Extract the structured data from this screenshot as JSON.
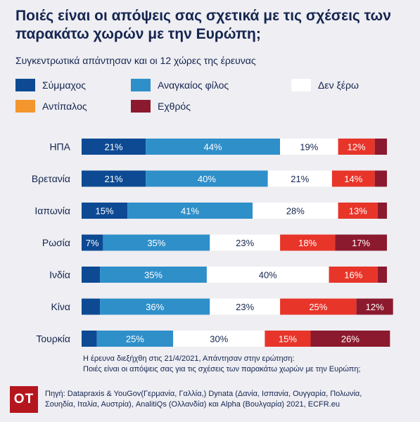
{
  "title": "Ποιές είναι οι απόψεις σας σχετικά με τις σχέσεις των παρακάτω χωρών με την Ευρώπη;",
  "subtitle": "Συγκεντρωτικά απάντησαν και οι 12 χώρες της έρευνας",
  "colors": {
    "ally": "#0d4a93",
    "partner": "#2f8fc9",
    "dontknow": "#ffffff",
    "rival": "#e8352a",
    "enemy": "#8c1a2e",
    "legend_rival": "#f3962e"
  },
  "legend": [
    {
      "label": "Σύμμαχος",
      "color": "#0d4a93"
    },
    {
      "label": "Αναγκαίος φίλος",
      "color": "#2f8fc9"
    },
    {
      "label": "Δεν ξέρω",
      "color": "#ffffff"
    },
    {
      "label": "Αντίπαλος",
      "color": "#f3962e"
    },
    {
      "label": "Εχθρός",
      "color": "#8c1a2e"
    }
  ],
  "chart_data": {
    "type": "bar",
    "orientation": "horizontal-stacked",
    "categories": [
      "ΗΠΑ",
      "Βρετανία",
      "Ιαπωνία",
      "Ρωσία",
      "Ινδία",
      "Κίνα",
      "Τουρκία"
    ],
    "series": [
      {
        "name": "Σύμμαχος",
        "values": [
          21,
          21,
          15,
          7,
          6,
          6,
          5
        ],
        "labels": [
          "21%",
          "21%",
          "15%",
          "7%",
          "",
          "",
          ""
        ]
      },
      {
        "name": "Αναγκαίος φίλος",
        "values": [
          44,
          40,
          41,
          35,
          35,
          36,
          25
        ],
        "labels": [
          "44%",
          "40%",
          "41%",
          "35%",
          "35%",
          "36%",
          "25%"
        ]
      },
      {
        "name": "Δεν ξέρω",
        "values": [
          19,
          21,
          28,
          23,
          40,
          23,
          30
        ],
        "labels": [
          "19%",
          "21%",
          "28%",
          "23%",
          "40%",
          "23%",
          "30%"
        ]
      },
      {
        "name": "Αντίπαλος",
        "values": [
          12,
          14,
          13,
          18,
          16,
          25,
          15
        ],
        "labels": [
          "12%",
          "14%",
          "13%",
          "18%",
          "16%",
          "25%",
          "15%"
        ]
      },
      {
        "name": "Εχθρός",
        "values": [
          4,
          4,
          3,
          17,
          3,
          12,
          26
        ],
        "labels": [
          "",
          "",
          "",
          "17%",
          "",
          "12%",
          "26%"
        ]
      }
    ],
    "xlim": [
      0,
      100
    ],
    "grid": false,
    "legend_position": "top"
  },
  "footnote": {
    "line1": "Η έρευνα διεξήχθη στις 21/4/2021, Απάντησαν στην ερώτηση:",
    "line2": "Ποιές είναι οι απόψεις σας για τις σχέσεις των παρακάτω χωρών με την Ευρώπη;"
  },
  "logo": "OT",
  "source": {
    "line1": "Πηγή: Datapraxis & YouGov(Γερμανία, Γαλλία,) Dynata (Δανία, Ισπανία, Ουγγαρία, Πολωνία,",
    "line2": "Σουηδία, Ιταλία, Αυστρία), AnalitiQs (Ολλανδία) και Alpha (Βουλγαρία) 2021, ECFR.eu"
  }
}
